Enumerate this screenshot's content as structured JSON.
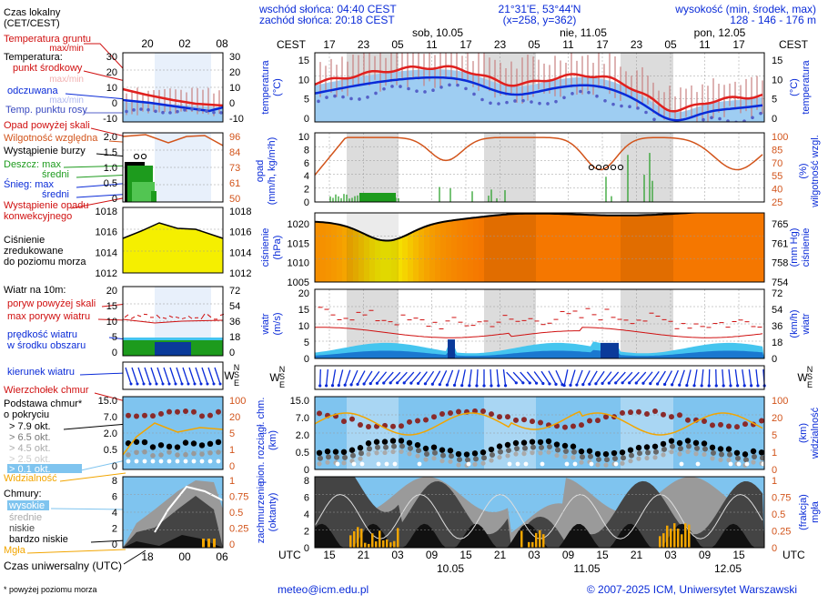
{
  "header": {
    "sunrise": "wschód słońca: 04:40 CEST",
    "sunset": "zachód słońca: 20:18 CEST",
    "coords": "21°31'E, 53°44'N",
    "grid": "(x=258, y=362)",
    "elev_label": "wysokość (min, środek, max)",
    "elev_values": "128 - 146 - 176 m"
  },
  "legend": {
    "local_time": "Czas lokalny",
    "local_time_tz": "(CET/CEST)",
    "soil_temp": "Temperatura gruntu",
    "soil_temp_sub": "max/min",
    "temp_label": "Temperatura:",
    "temp_mid": "punkt środkowy",
    "temp_range": "max/min",
    "temp_felt": "odczuwana",
    "temp_felt_range": "max/min",
    "dew_point": "Temp. punktu rosy",
    "precip_above": "Opad powyżej skali",
    "humidity": "Wilgotność względna",
    "storm": "Wystąpienie burzy",
    "rain_max": "Deszcz: max",
    "rain_mean": "średni",
    "snow_max": "Śnieg:     max",
    "snow_mean": "średni",
    "convective": "Wystąpienie opadu",
    "convective2": "konwekcyjnego",
    "pressure1": "Ciśnienie",
    "pressure2": "zredukowane",
    "pressure3": "do poziomu morza",
    "wind_title": "Wiatr na 10m:",
    "gust_above": "poryw powyżej skali",
    "gust_max": "max porywy wiatru",
    "wind_mean": "prędkość wiatru",
    "wind_mean2": "w środku obszaru",
    "wind_dir": "kierunek wiatru",
    "cloud_top": "Wierzchołek chmur",
    "cloud_base": "Podstawa chmur*",
    "cloud_base2": "o pokryciu",
    "okt79": "> 7.9 okt.",
    "okt65": "> 6.5 okt.",
    "okt45": "> 4.5 okt.",
    "okt25": "> 2.5 okt.",
    "okt01": "> 0.1 okt.",
    "visibility": "Widzialność",
    "clouds": "Chmury:",
    "cl_high": "wysokie",
    "cl_mid": "średnie",
    "cl_low": "niskie",
    "cl_vlow": "bardzo niskie",
    "fog": "Mgła",
    "utc_label": "Czas uniwersalny (UTC)",
    "footnote": "* powyżej poziomu morza"
  },
  "footer": {
    "email": "meteo@icm.edu.pl",
    "copyright": "© 2007-2025 ICM, Uniwersytet Warszawski"
  },
  "timeline": {
    "cest_label": "CEST",
    "utc_label": "UTC",
    "days_top": [
      "sob, 10.05",
      "nie, 11.05",
      "pon, 12.05"
    ],
    "days_bottom": [
      "10.05",
      "11.05",
      "12.05"
    ],
    "cest_ticks": [
      "17",
      "23",
      "05",
      "11",
      "17",
      "23",
      "05",
      "11",
      "17",
      "23",
      "05",
      "11",
      "17"
    ],
    "utc_ticks": [
      "15",
      "21",
      "03",
      "09",
      "15",
      "21",
      "03",
      "09",
      "15",
      "21",
      "03",
      "09",
      "15"
    ],
    "small_cest_ticks": [
      "20",
      "02",
      "08"
    ],
    "small_utc_ticks": [
      "18",
      "00",
      "06"
    ]
  },
  "axes": {
    "temperature": {
      "label": "temperatura",
      "unit": "(°C)",
      "ticks": [
        "15",
        "10",
        "5",
        "0"
      ],
      "small_ticks": [
        "30",
        "20",
        "10",
        "0",
        "-10"
      ]
    },
    "precip": {
      "label": "opad",
      "unit": "(mm/h, kg/m²h)",
      "ticks": [
        "10",
        "8",
        "6",
        "4",
        "2",
        "0"
      ],
      "small_ticks": [
        "2.0",
        "1.5",
        "1.0",
        "0.5",
        "0"
      ]
    },
    "humidity": {
      "label": "wilgotność wzgl.",
      "unit": "(%)",
      "ticks": [
        "100",
        "85",
        "70",
        "55",
        "40",
        "25"
      ],
      "small_ticks": [
        "96",
        "84",
        "73",
        "61",
        "50"
      ]
    },
    "pressure": {
      "label": "ciśnienie",
      "unit": "(hPa)",
      "ticks": [
        "1020",
        "1015",
        "1010",
        "1005"
      ],
      "small_ticks": [
        "1018",
        "1016",
        "1014",
        "1012"
      ]
    },
    "pressure_mm": {
      "label": "ciśnienie",
      "unit": "(mm Hg)",
      "ticks": [
        "765",
        "761",
        "758",
        "754"
      ],
      "small_ticks": [
        "1018",
        "1016",
        "1014",
        "1012"
      ]
    },
    "wind": {
      "label": "wiatr",
      "unit": "(m/s)",
      "ticks": [
        "20",
        "15",
        "10",
        "5",
        "0"
      ],
      "small_ticks": [
        "20",
        "15",
        "10",
        "5",
        "0"
      ]
    },
    "wind_kmh": {
      "label": "wiatr",
      "unit": "(km/h)",
      "ticks": [
        "72",
        "54",
        "36",
        "18",
        "0"
      ],
      "small_ticks": [
        "72",
        "54",
        "36",
        "18",
        "0"
      ]
    },
    "dir_letters": {
      "n": "N",
      "w": "W",
      "s": "S",
      "e": "E"
    },
    "cloud_base": {
      "label": "pion. rozciągł. chm.",
      "unit": "(km)",
      "ticks": [
        "15.0",
        "7.0",
        "2.0",
        "0.5",
        "0"
      ],
      "small_ticks": [
        "15.0",
        "7.0",
        "2.0",
        "0.5",
        "0"
      ]
    },
    "visibility": {
      "label": "widzialność",
      "unit": "(km)",
      "ticks": [
        "100",
        "20",
        "5",
        "1",
        "0"
      ],
      "small_ticks": [
        "100",
        "20",
        "5",
        "1",
        "0"
      ]
    },
    "cloudiness": {
      "label": "zachmurzenie",
      "unit": "(oktanty)",
      "ticks": [
        "8",
        "6",
        "4",
        "2",
        "0"
      ],
      "small_ticks": [
        "8",
        "6",
        "4",
        "2",
        "0"
      ]
    },
    "fog": {
      "label": "mgła",
      "unit": "(frakcja)",
      "ticks": [
        "1",
        "0.75",
        "0.5",
        "0.25",
        "0"
      ],
      "small_ticks": [
        "1",
        "0.75",
        "0.5",
        "0.25",
        "0"
      ]
    }
  },
  "colors": {
    "temp_line": "#e0201e",
    "felt_line": "#0a2bd8",
    "dew": "#5560c8",
    "humidity": "#d2541b",
    "rain": "#1d9b1d",
    "pressure_low": "#f5ef00",
    "pressure_high": "#f08a00",
    "wind_light": "#45c5ef",
    "wind_dark": "#0a3a9a",
    "night": "#dcdcdc",
    "sky": "#7fc4ef",
    "fog": "#f2a500"
  }
}
